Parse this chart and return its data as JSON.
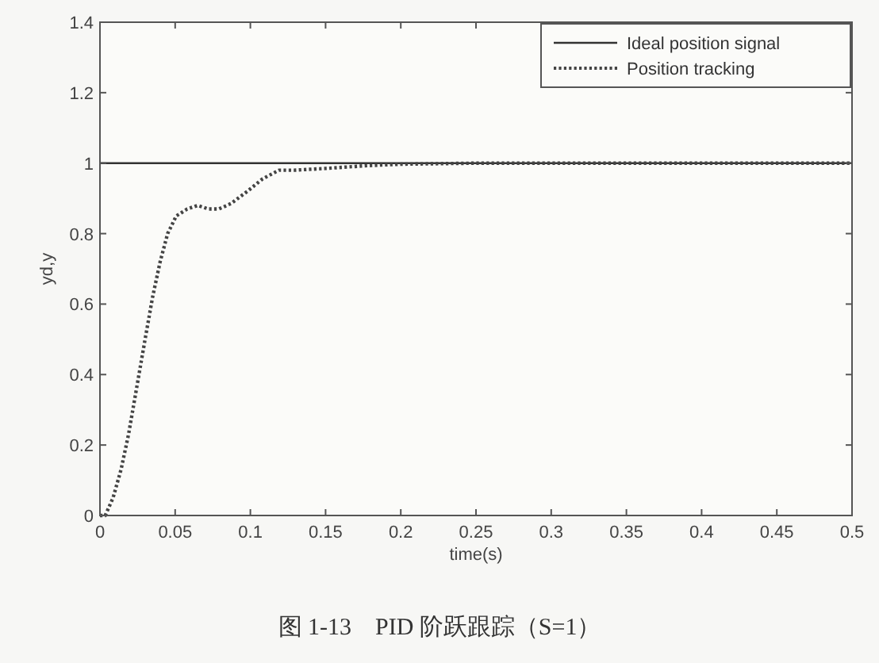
{
  "chart_data": {
    "type": "line",
    "xlabel": "time(s)",
    "ylabel": "yd,y",
    "xlim": [
      0,
      0.5
    ],
    "xticks": [
      0,
      0.05,
      0.1,
      0.15,
      0.2,
      0.25,
      0.3,
      0.35,
      0.4,
      0.45,
      0.5
    ],
    "ylim": [
      0,
      1.4
    ],
    "yticks": [
      0,
      0.2,
      0.4,
      0.6,
      0.8,
      1,
      1.2,
      1.4
    ],
    "legend": "top right",
    "grid": false,
    "series": [
      {
        "name": "Ideal position signal",
        "color": "#333333",
        "line_style": "solid",
        "x": [
          0,
          0.5
        ],
        "values": [
          1,
          1
        ]
      },
      {
        "name": "Position tracking",
        "color": "#444444",
        "line_style": "dotted",
        "x": [
          0,
          0.0035,
          0.0087,
          0.014,
          0.019,
          0.0245,
          0.03,
          0.035,
          0.04,
          0.045,
          0.0507,
          0.058,
          0.065,
          0.072,
          0.079,
          0.087,
          0.098,
          0.108,
          0.119,
          0.129,
          0.15,
          0.178,
          0.2,
          0.25,
          0.3,
          0.4,
          0.5
        ],
        "values": [
          0,
          0,
          0.05,
          0.13,
          0.23,
          0.365,
          0.5,
          0.62,
          0.72,
          0.8,
          0.85,
          0.87,
          0.88,
          0.87,
          0.87,
          0.885,
          0.92,
          0.955,
          0.98,
          0.98,
          0.985,
          0.993,
          0.997,
          1,
          1,
          1,
          1
        ]
      }
    ],
    "annotations": [
      "图 1-13　PID 阶跃跟踪（S=1）"
    ]
  }
}
